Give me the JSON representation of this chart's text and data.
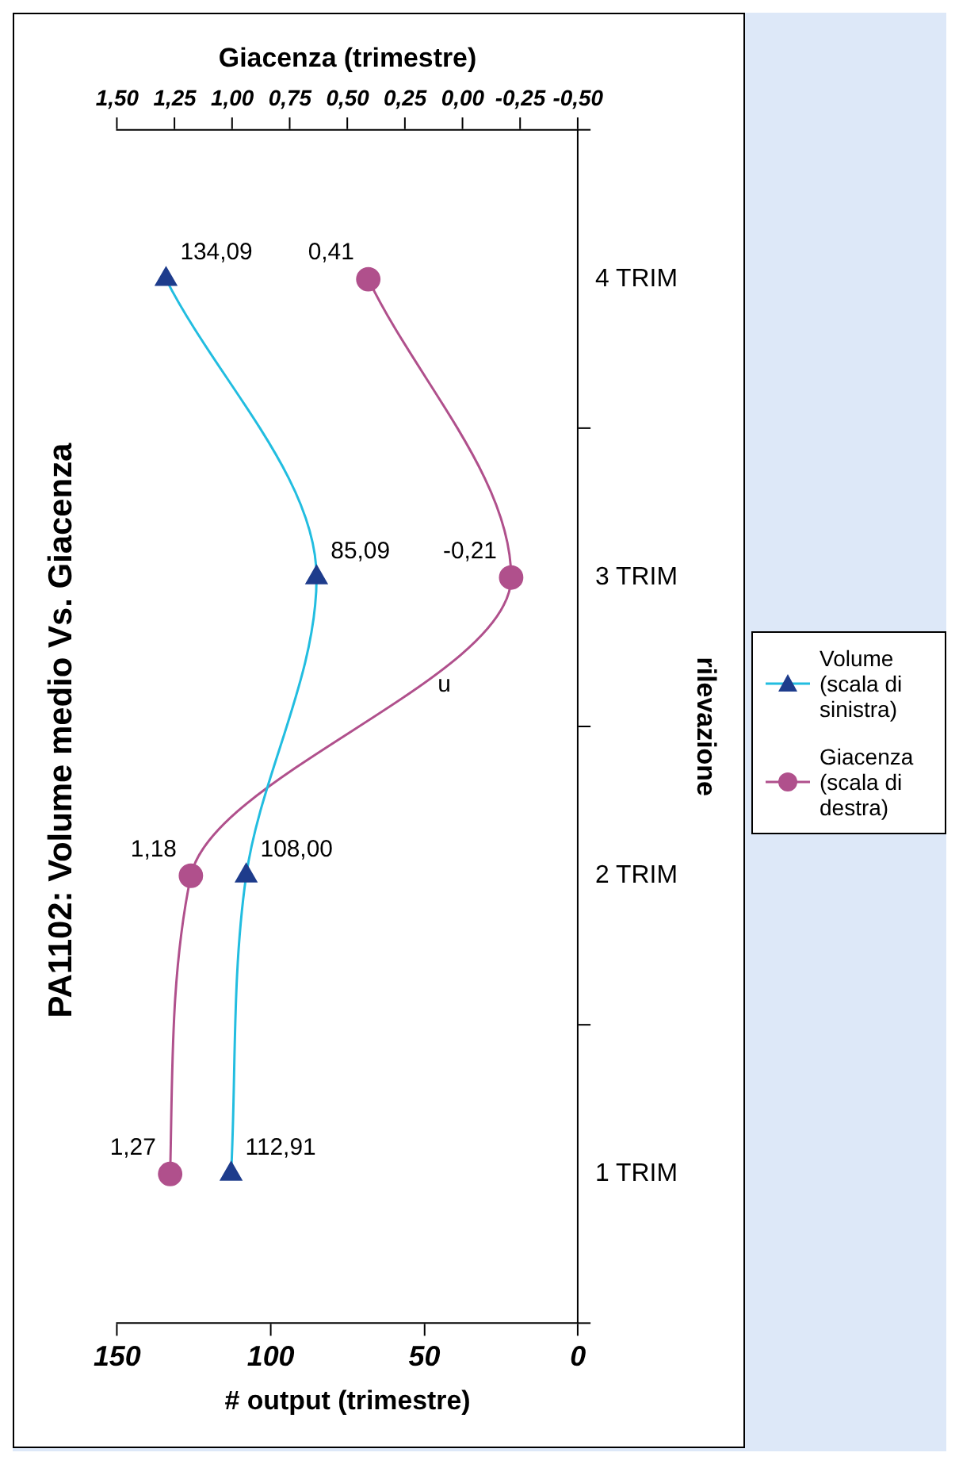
{
  "chart_data": {
    "type": "line",
    "orientation": "horizontal",
    "title": "PA1102: Volume medio Vs. Giacenza",
    "xlabel": "# output (trimestre)",
    "x2label": "Giacenza (trimestre)",
    "ylabel": "rilevazione",
    "categories": [
      "4 TRIM",
      "3 TRIM",
      "2 TRIM",
      "1 TRIM"
    ],
    "series": [
      {
        "name": "Volume (scala di sinistra)",
        "color": "#1e3c8c",
        "values": [
          134.09,
          85.09,
          108.0,
          112.91
        ],
        "value_labels": [
          "134,09",
          "85,09",
          "108,00",
          "112,91"
        ],
        "marker": "triangle"
      },
      {
        "name": "Giacenza (scala di destra)",
        "color": "#b0508c",
        "values": [
          0.41,
          -0.21,
          1.18,
          1.27
        ],
        "value_labels": [
          "0,41",
          "-0,21",
          "1,18",
          "1,27"
        ],
        "marker": "circle",
        "axis": "x2"
      }
    ],
    "xlim": [
      150,
      0
    ],
    "xticks": [
      0,
      50,
      100,
      150
    ],
    "x2lim": [
      1.5,
      -0.5
    ],
    "x2ticks": [
      {
        "value": -0.5,
        "label": "-0,50"
      },
      {
        "value": -0.25,
        "label": "-0,25"
      },
      {
        "value": 0,
        "label": "0,00"
      },
      {
        "value": 0.25,
        "label": "0,25"
      },
      {
        "value": 0.5,
        "label": "0,50"
      },
      {
        "value": 0.75,
        "label": "0,75"
      },
      {
        "value": 1,
        "label": "1,00"
      },
      {
        "value": 1.25,
        "label": "1,25"
      },
      {
        "value": 1.5,
        "label": "1,50"
      }
    ],
    "annotations": [
      "u"
    ],
    "legend": "right",
    "grid": false,
    "line_style": "solid"
  }
}
